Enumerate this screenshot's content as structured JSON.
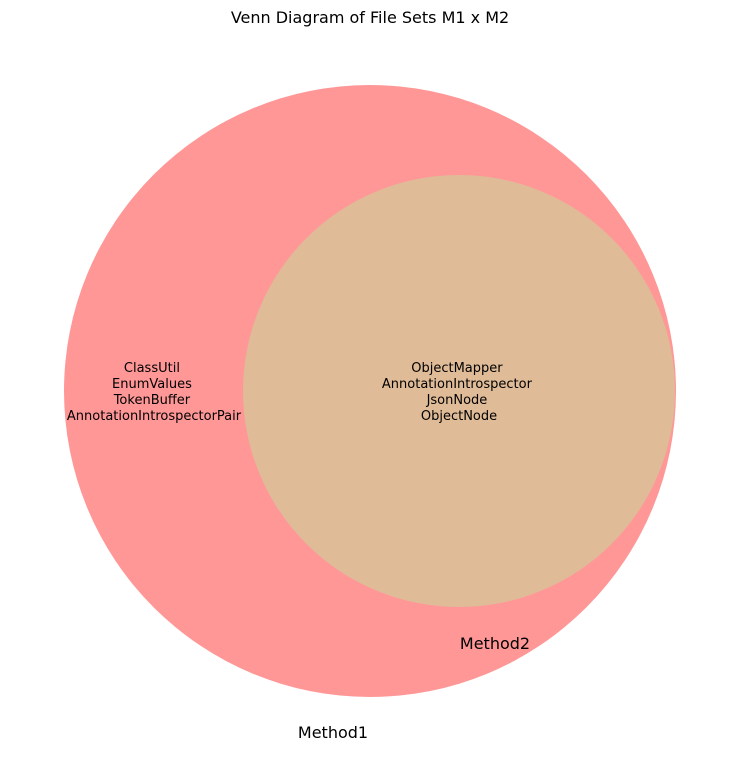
{
  "title": "Venn Diagram of File Sets M1 x M2",
  "sets": [
    {
      "name": "Method1",
      "color": "#ff9797"
    },
    {
      "name": "Method2",
      "color": "#e0bb97"
    }
  ],
  "regions": {
    "only_method1": [
      "ClassUtil",
      "EnumValues",
      "TokenBuffer",
      "AnnotationIntrospectorPair"
    ],
    "both": [
      "ObjectMapper",
      "AnnotationIntrospector",
      "JsonNode",
      "ObjectNode"
    ]
  }
}
